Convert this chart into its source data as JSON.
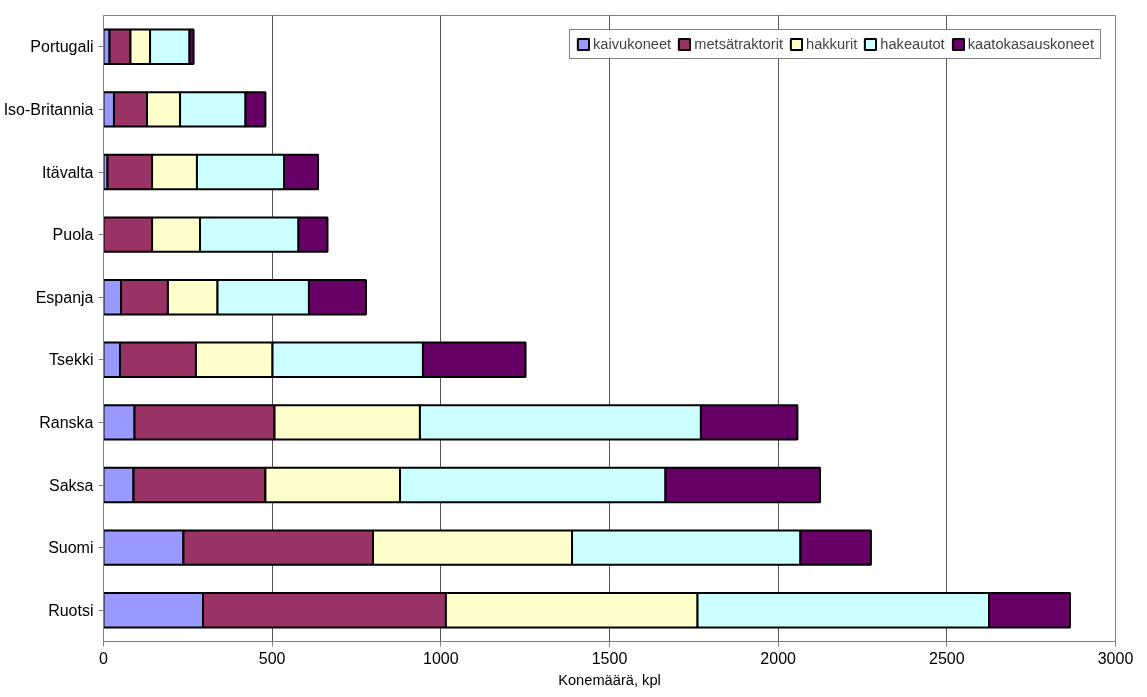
{
  "chart_data": {
    "type": "bar",
    "orientation": "horizontal",
    "stacked": true,
    "xlabel": "Konemäärä, kpl",
    "categories": [
      "Portugali",
      "Iso-Britannia",
      "Itävalta",
      "Puola",
      "Espanja",
      "Tsekki",
      "Ranska",
      "Saksa",
      "Suomi",
      "Ruotsi"
    ],
    "series": [
      {
        "name": "kaivukoneet",
        "color": "#9999ff",
        "values": [
          18,
          31,
          12,
          0,
          52,
          49,
          92,
          89,
          237,
          295
        ]
      },
      {
        "name": "metsätraktorit",
        "color": "#993366",
        "values": [
          62,
          98,
          132,
          144,
          139,
          225,
          415,
          391,
          562,
          720
        ]
      },
      {
        "name": "hakkurit",
        "color": "#ffffcc",
        "values": [
          58,
          98,
          133,
          142,
          147,
          227,
          431,
          399,
          590,
          746
        ]
      },
      {
        "name": "hakeautot",
        "color": "#ccffff",
        "values": [
          117,
          194,
          258,
          292,
          271,
          446,
          833,
          787,
          677,
          864
        ]
      },
      {
        "name": "kaatokasauskoneet",
        "color": "#660066",
        "values": [
          12,
          59,
          101,
          86,
          169,
          304,
          286,
          458,
          209,
          240
        ]
      }
    ],
    "xlim": [
      0,
      3000
    ],
    "xticks": [
      0,
      500,
      1000,
      1500,
      2000,
      2500,
      3000
    ],
    "grid": "x",
    "legend": "top right"
  }
}
